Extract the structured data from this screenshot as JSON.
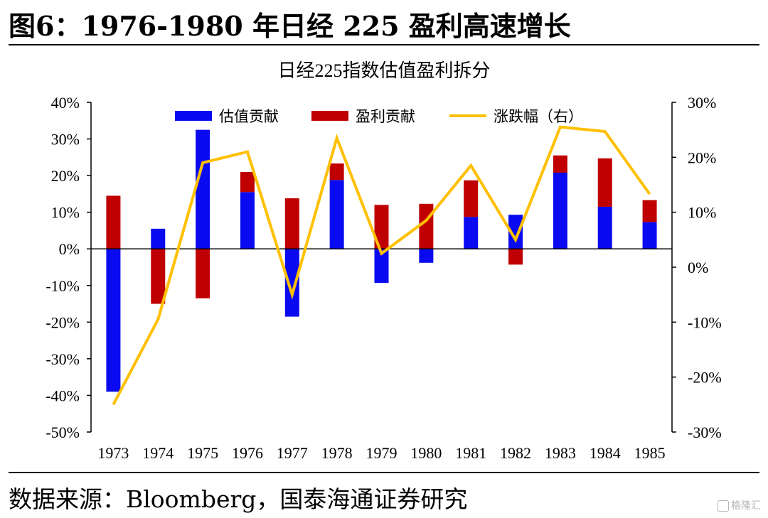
{
  "figure": {
    "title": "图6：1976-1980 年日经 225 盈利高速增长",
    "source": "数据来源：Bloomberg，国泰海通证券研究",
    "watermark": "格隆汇"
  },
  "colors": {
    "valuation": "#0a0af0",
    "earnings": "#c00000",
    "return": "#ffc000",
    "axis": "#000000"
  },
  "chart_data": {
    "type": "bar",
    "title": "日经225指数估值盈利拆分",
    "categories": [
      "1973",
      "1974",
      "1975",
      "1976",
      "1977",
      "1978",
      "1979",
      "1980",
      "1981",
      "1982",
      "1983",
      "1984",
      "1985"
    ],
    "series": [
      {
        "name": "估值贡献",
        "type": "bar",
        "axis": "left",
        "values": [
          -39,
          5.5,
          32.5,
          15.5,
          -18.5,
          18.8,
          -9.3,
          -3.8,
          8.7,
          9.3,
          20.8,
          11.5,
          7.3
        ]
      },
      {
        "name": "盈利贡献",
        "type": "bar",
        "axis": "left",
        "values": [
          14.5,
          -15,
          -13.5,
          5.5,
          13.8,
          4.5,
          12,
          12.3,
          10,
          -4.3,
          4.7,
          13.2,
          6
        ]
      },
      {
        "name": "涨跌幅（右）",
        "type": "line",
        "axis": "right",
        "values": [
          -25,
          -9.5,
          19,
          21,
          -5,
          23.5,
          2.5,
          8.5,
          18.5,
          5,
          25.5,
          24.7,
          13.3
        ]
      }
    ],
    "ylim": [
      -50,
      40
    ],
    "y_ticks": [
      "40%",
      "30%",
      "20%",
      "10%",
      "0%",
      "-10%",
      "-20%",
      "-30%",
      "-40%",
      "-50%"
    ],
    "y2lim": [
      -30,
      30
    ],
    "y2_ticks": [
      "30%",
      "20%",
      "10%",
      "0%",
      "-10%",
      "-20%",
      "-30%"
    ],
    "legend_position": "top",
    "grid": false
  }
}
